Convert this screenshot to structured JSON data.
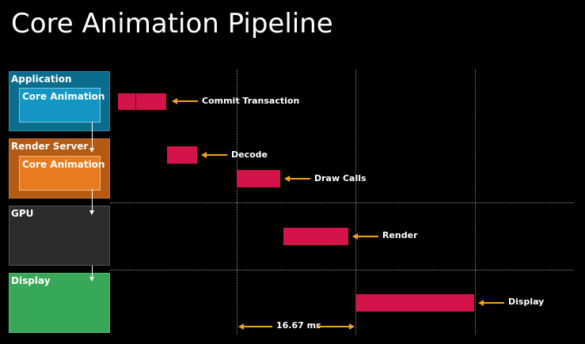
{
  "title": "Core Animation Pipeline",
  "stages": [
    {
      "label": "Application",
      "inner": "Core Animation",
      "color": "#0a6d8c",
      "inner_color": "#1496c4"
    },
    {
      "label": "Render Server",
      "inner": "Core Animation",
      "color": "#b55a12",
      "inner_color": "#e67c1f"
    },
    {
      "label": "GPU",
      "color": "#2c2c2c"
    },
    {
      "label": "Display",
      "color": "#37a857"
    }
  ],
  "annotations": {
    "commit": "Commit Transaction",
    "decode": "Decode",
    "draw_calls": "Draw Calls",
    "render": "Render",
    "display": "Display"
  },
  "frame_interval": "16.67 ms",
  "colors": {
    "bar": "#d4134a",
    "arrow": "#f4a21b",
    "background": "#000000"
  }
}
